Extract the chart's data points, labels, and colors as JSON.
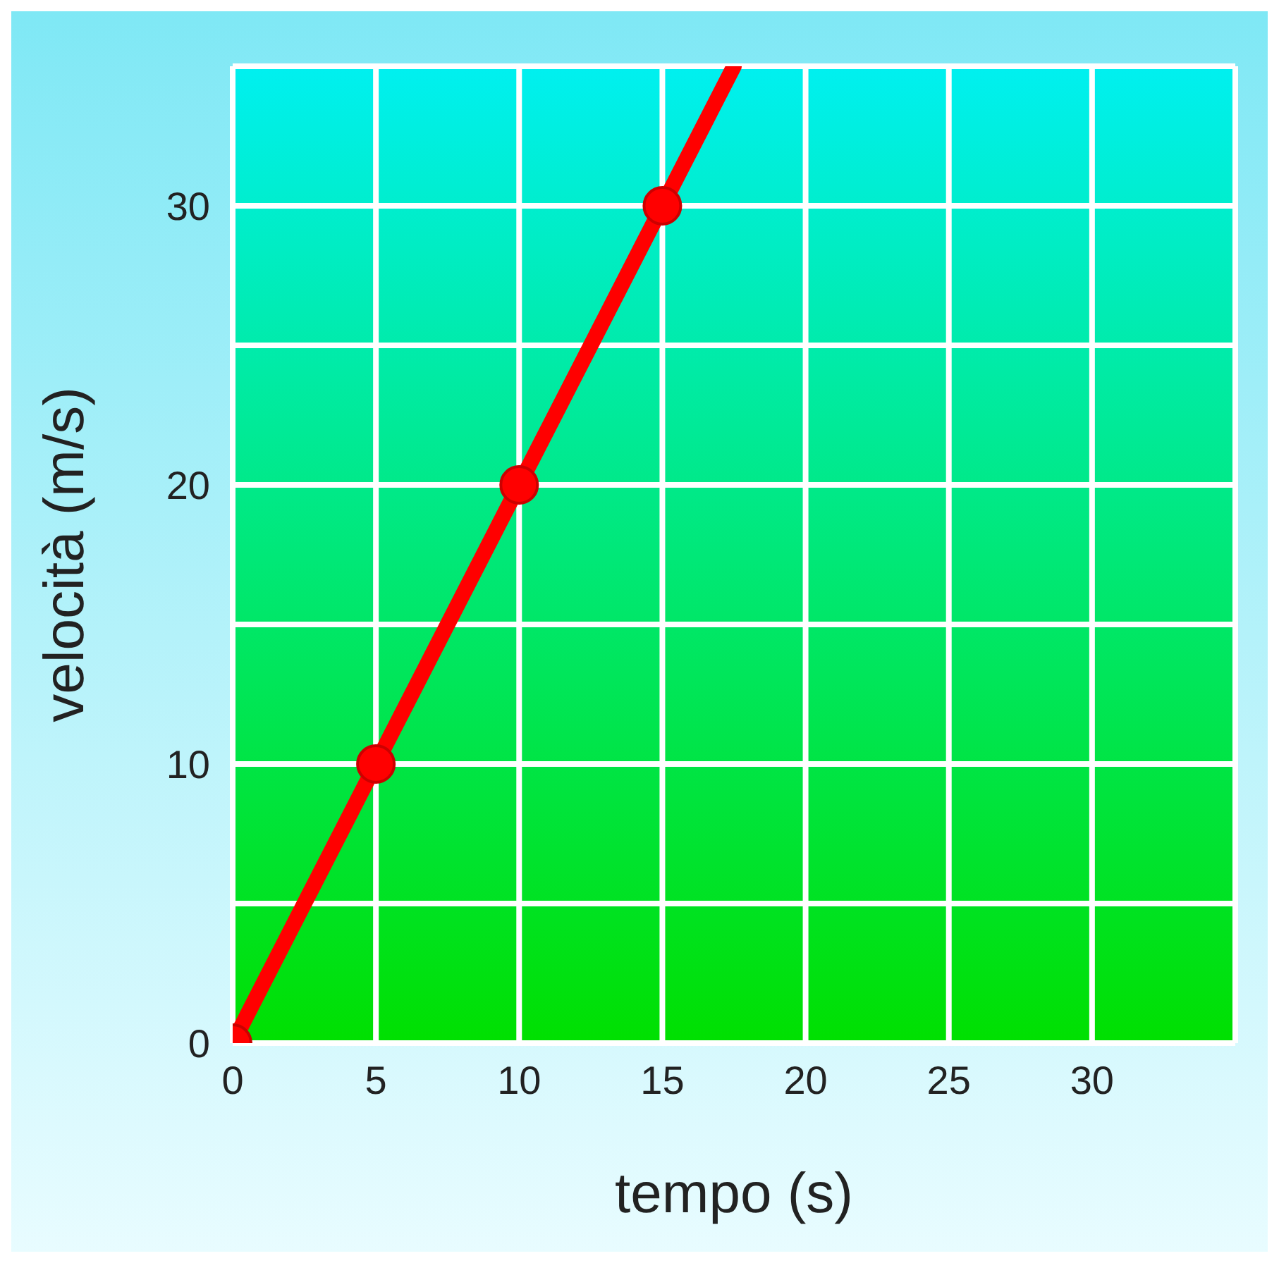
{
  "chart_data": {
    "type": "line",
    "xlabel": "tempo (s)",
    "ylabel": "velocità (m/s)",
    "series": [
      {
        "type": "line",
        "color": "#ff0000",
        "x": [
          0,
          17.5
        ],
        "values": [
          0,
          35
        ],
        "marker": "none"
      },
      {
        "type": "scatter",
        "color": "#ff0000",
        "x": [
          0,
          5,
          10,
          15
        ],
        "values": [
          0,
          10,
          20,
          30
        ],
        "marker": "circle"
      }
    ],
    "xlim": [
      0,
      35
    ],
    "ylim": [
      0,
      35
    ],
    "xticks": [
      0,
      5,
      10,
      15,
      20,
      25,
      30,
      {
        "value": 35,
        "label": null
      }
    ],
    "yticks": [
      0,
      {
        "value": 5,
        "label": null
      },
      10,
      {
        "value": 15,
        "label": null
      },
      20,
      {
        "value": 25,
        "label": null
      },
      30,
      {
        "value": 35,
        "label": null
      }
    ],
    "grid": true
  }
}
